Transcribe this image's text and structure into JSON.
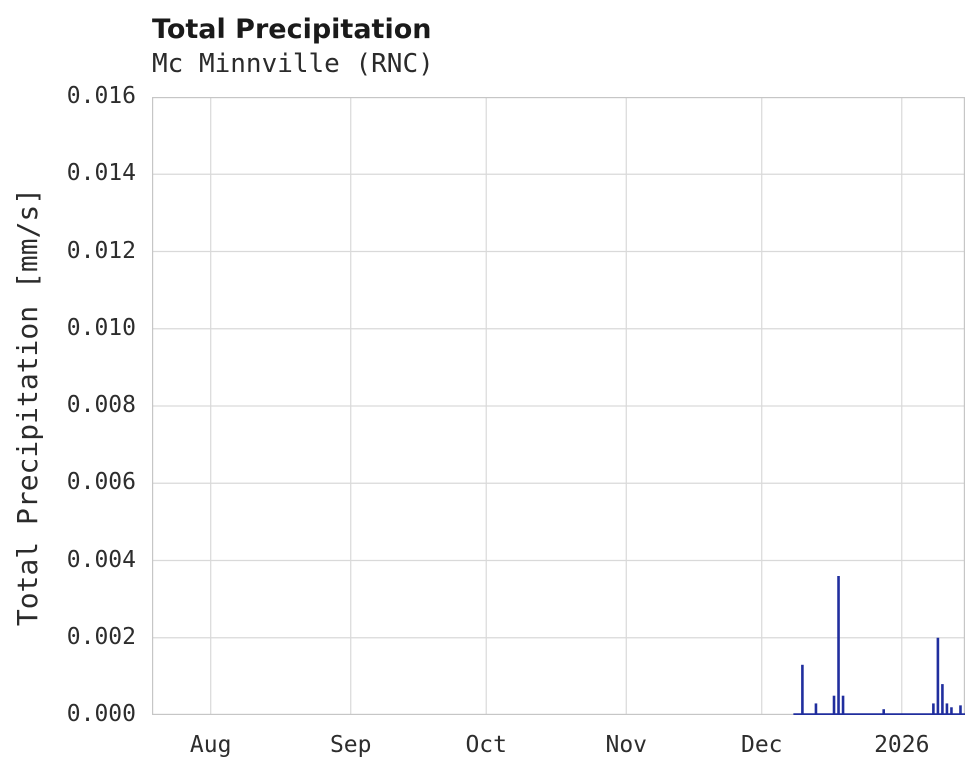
{
  "chart_data": {
    "type": "line",
    "title": "Total Precipitation",
    "subtitle": "Mc Minnville (RNC)",
    "ylabel": "Total Precipitation [mm/s]",
    "xlabel": "",
    "ylim": [
      0.0,
      0.016
    ],
    "x_min": "2025-07-19",
    "x_max": "2026-01-15",
    "grid": true,
    "legend": "none",
    "yticks": {
      "values": [
        0.0,
        0.002,
        0.004,
        0.006,
        0.008,
        0.01,
        0.012,
        0.014,
        0.016
      ],
      "labels": [
        "0.000",
        "0.002",
        "0.004",
        "0.006",
        "0.008",
        "0.010",
        "0.012",
        "0.014",
        "0.016"
      ]
    },
    "xticks": {
      "dates": [
        "2025-08-01",
        "2025-09-01",
        "2025-10-01",
        "2025-11-01",
        "2025-12-01",
        "2026-01-01"
      ],
      "labels": [
        "Aug",
        "Sep",
        "Oct",
        "Nov",
        "Dec",
        "2026"
      ]
    },
    "colors": {
      "series": "#202e9e",
      "grid": "#d9d9d9",
      "border": "#c6c6c6",
      "text": "#2d2d2d",
      "title": "#1a1a1a",
      "background": "#ffffff"
    },
    "series": [
      {
        "name": "Total Precipitation",
        "baseline_start": "2025-12-08",
        "baseline_value": 0.0,
        "spikes": [
          {
            "date": "2025-12-10",
            "value": 0.0013
          },
          {
            "date": "2025-12-13",
            "value": 0.0003
          },
          {
            "date": "2025-12-17",
            "value": 0.0005
          },
          {
            "date": "2025-12-18",
            "value": 0.0036
          },
          {
            "date": "2025-12-19",
            "value": 0.0005
          },
          {
            "date": "2025-12-28",
            "value": 0.00015
          },
          {
            "date": "2026-01-08",
            "value": 0.0003
          },
          {
            "date": "2026-01-09",
            "value": 0.002
          },
          {
            "date": "2026-01-10",
            "value": 0.0008
          },
          {
            "date": "2026-01-11",
            "value": 0.0003
          },
          {
            "date": "2026-01-12",
            "value": 0.0002
          },
          {
            "date": "2026-01-14",
            "value": 0.00025
          }
        ]
      }
    ]
  }
}
